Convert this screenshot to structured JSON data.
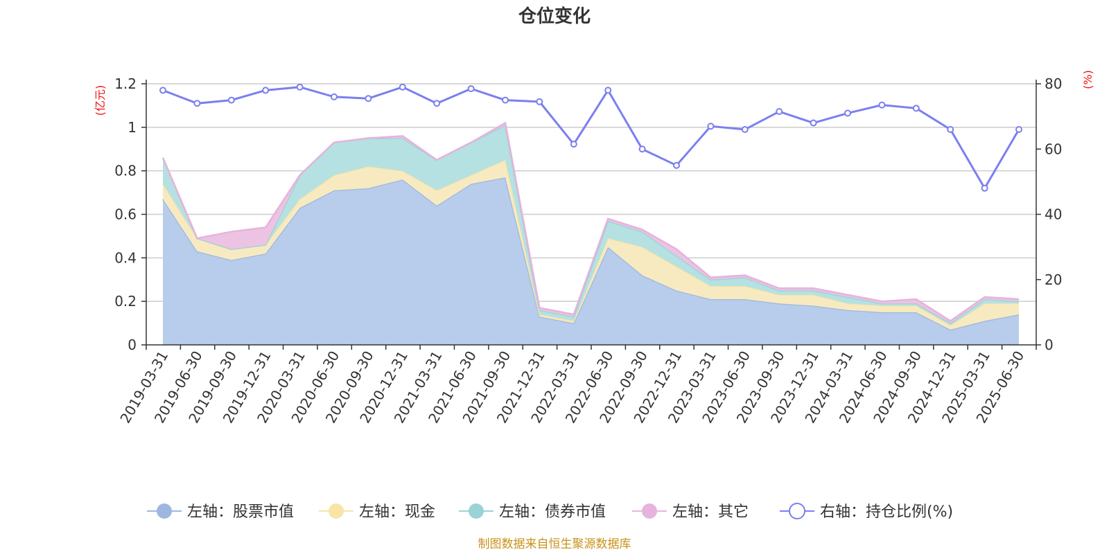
{
  "chart_data": {
    "type": "area",
    "title": "仓位变化",
    "left_unit": "(亿元)",
    "right_unit": "(%)",
    "categories": [
      "2019-03-31",
      "2019-06-30",
      "2019-09-30",
      "2019-12-31",
      "2020-03-31",
      "2020-06-30",
      "2020-09-30",
      "2020-12-31",
      "2021-03-31",
      "2021-06-30",
      "2021-09-30",
      "2021-12-31",
      "2022-03-31",
      "2022-06-30",
      "2022-09-30",
      "2022-12-31",
      "2023-03-31",
      "2023-06-30",
      "2023-09-30",
      "2023-12-31",
      "2024-03-31",
      "2024-06-30",
      "2024-09-30",
      "2024-12-31",
      "2025-03-31",
      "2025-06-30"
    ],
    "left_axis": {
      "min": 0,
      "max": 1.2,
      "ticks": [
        "0",
        "0.2",
        "0.4",
        "0.6",
        "0.8",
        "1",
        "1.2"
      ]
    },
    "right_axis": {
      "min": 0,
      "max": 80,
      "ticks": [
        "0",
        "20",
        "40",
        "60",
        "80"
      ]
    },
    "grid": true,
    "legend_position": "bottom",
    "stacked_series": [
      {
        "name": "左轴：股票市值",
        "color": "#9db8e0",
        "fill": "#b8cceb",
        "values": [
          0.67,
          0.43,
          0.39,
          0.42,
          0.63,
          0.71,
          0.72,
          0.76,
          0.64,
          0.74,
          0.77,
          0.13,
          0.1,
          0.45,
          0.32,
          0.25,
          0.21,
          0.21,
          0.19,
          0.18,
          0.16,
          0.15,
          0.15,
          0.07,
          0.11,
          0.14
        ]
      },
      {
        "name": "左轴：现金",
        "color": "#f7e4a6",
        "fill": "#f8eac0",
        "values": [
          0.07,
          0.06,
          0.05,
          0.04,
          0.04,
          0.07,
          0.1,
          0.04,
          0.07,
          0.04,
          0.08,
          0.01,
          0.01,
          0.04,
          0.13,
          0.11,
          0.06,
          0.06,
          0.04,
          0.05,
          0.03,
          0.03,
          0.03,
          0.02,
          0.08,
          0.05
        ]
      },
      {
        "name": "左轴：债券市值",
        "color": "#9ad3d6",
        "fill": "#b5e1e2",
        "values": [
          0.12,
          0.0,
          0.0,
          0.0,
          0.11,
          0.15,
          0.13,
          0.15,
          0.14,
          0.15,
          0.16,
          0.02,
          0.02,
          0.08,
          0.07,
          0.05,
          0.03,
          0.04,
          0.02,
          0.02,
          0.03,
          0.01,
          0.01,
          0.01,
          0.02,
          0.01
        ]
      },
      {
        "name": "左轴：其它",
        "color": "#e6b3dc",
        "fill": "#ecc3e3",
        "values": [
          0.0,
          0.0,
          0.08,
          0.08,
          0.0,
          0.0,
          0.0,
          0.01,
          0.0,
          0.0,
          0.01,
          0.01,
          0.01,
          0.01,
          0.01,
          0.03,
          0.01,
          0.01,
          0.01,
          0.01,
          0.01,
          0.01,
          0.02,
          0.01,
          0.01,
          0.01
        ]
      }
    ],
    "line_series": {
      "name": "右轴：持仓比例(%)",
      "color": "#7b7ff0",
      "values": [
        78,
        74,
        75,
        78,
        79,
        76,
        75.5,
        79,
        74,
        78.5,
        75,
        74.5,
        61.5,
        78,
        60,
        55,
        67,
        66,
        71.5,
        68,
        71,
        73.5,
        72.5,
        66,
        48,
        66
      ]
    },
    "source": "制图数据来自恒生聚源数据库"
  }
}
